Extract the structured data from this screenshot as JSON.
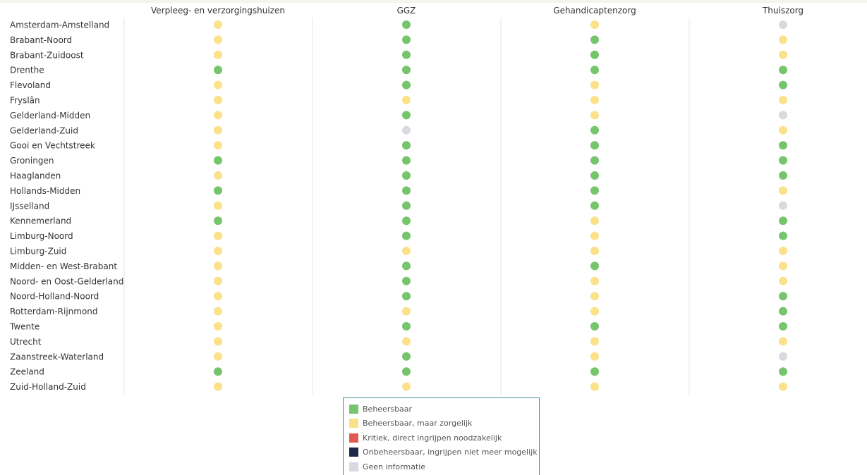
{
  "chart_data": {
    "type": "table",
    "columns": [
      "Verpleeg- en verzorgingshuizen",
      "GGZ",
      "Gehandicaptenzorg",
      "Thuiszorg"
    ],
    "status_colors": {
      "Beheersbaar": "#76c56d",
      "Beheersbaar, maar zorgelijk": "#fbe18a",
      "Kritiek, direct ingrijpen noodzakelijk": "#e05a52",
      "Onbeheersbaar, ingrijpen niet meer mogelijk": "#1d2848",
      "Geen informatie": "#d8dae0"
    },
    "rows": [
      {
        "region": "Amsterdam-Amstelland",
        "values": [
          "Beheersbaar, maar zorgelijk",
          "Beheersbaar",
          "Beheersbaar, maar zorgelijk",
          "Geen informatie"
        ]
      },
      {
        "region": "Brabant-Noord",
        "values": [
          "Beheersbaar, maar zorgelijk",
          "Beheersbaar",
          "Beheersbaar",
          "Beheersbaar, maar zorgelijk"
        ]
      },
      {
        "region": "Brabant-Zuidoost",
        "values": [
          "Beheersbaar, maar zorgelijk",
          "Beheersbaar",
          "Beheersbaar",
          "Beheersbaar, maar zorgelijk"
        ]
      },
      {
        "region": "Drenthe",
        "values": [
          "Beheersbaar",
          "Beheersbaar",
          "Beheersbaar",
          "Beheersbaar"
        ]
      },
      {
        "region": "Flevoland",
        "values": [
          "Beheersbaar, maar zorgelijk",
          "Beheersbaar",
          "Beheersbaar, maar zorgelijk",
          "Beheersbaar"
        ]
      },
      {
        "region": "Fryslân",
        "values": [
          "Beheersbaar, maar zorgelijk",
          "Beheersbaar, maar zorgelijk",
          "Beheersbaar, maar zorgelijk",
          "Beheersbaar, maar zorgelijk"
        ]
      },
      {
        "region": "Gelderland-Midden",
        "values": [
          "Beheersbaar, maar zorgelijk",
          "Beheersbaar",
          "Beheersbaar, maar zorgelijk",
          "Geen informatie"
        ]
      },
      {
        "region": "Gelderland-Zuid",
        "values": [
          "Beheersbaar, maar zorgelijk",
          "Geen informatie",
          "Beheersbaar",
          "Beheersbaar, maar zorgelijk"
        ]
      },
      {
        "region": "Gooi en Vechtstreek",
        "values": [
          "Beheersbaar, maar zorgelijk",
          "Beheersbaar",
          "Beheersbaar",
          "Beheersbaar"
        ]
      },
      {
        "region": "Groningen",
        "values": [
          "Beheersbaar",
          "Beheersbaar",
          "Beheersbaar",
          "Beheersbaar"
        ]
      },
      {
        "region": "Haaglanden",
        "values": [
          "Beheersbaar, maar zorgelijk",
          "Beheersbaar",
          "Beheersbaar",
          "Beheersbaar"
        ]
      },
      {
        "region": "Hollands-Midden",
        "values": [
          "Beheersbaar",
          "Beheersbaar",
          "Beheersbaar",
          "Beheersbaar, maar zorgelijk"
        ]
      },
      {
        "region": "IJsselland",
        "values": [
          "Beheersbaar, maar zorgelijk",
          "Beheersbaar",
          "Beheersbaar",
          "Geen informatie"
        ]
      },
      {
        "region": "Kennemerland",
        "values": [
          "Beheersbaar",
          "Beheersbaar",
          "Beheersbaar, maar zorgelijk",
          "Beheersbaar"
        ]
      },
      {
        "region": "Limburg-Noord",
        "values": [
          "Beheersbaar, maar zorgelijk",
          "Beheersbaar",
          "Beheersbaar, maar zorgelijk",
          "Beheersbaar"
        ]
      },
      {
        "region": "Limburg-Zuid",
        "values": [
          "Beheersbaar, maar zorgelijk",
          "Beheersbaar, maar zorgelijk",
          "Beheersbaar, maar zorgelijk",
          "Beheersbaar, maar zorgelijk"
        ]
      },
      {
        "region": "Midden- en West-Brabant",
        "values": [
          "Beheersbaar, maar zorgelijk",
          "Beheersbaar",
          "Beheersbaar",
          "Beheersbaar, maar zorgelijk"
        ]
      },
      {
        "region": "Noord- en Oost-Gelderland",
        "values": [
          "Beheersbaar, maar zorgelijk",
          "Beheersbaar",
          "Beheersbaar, maar zorgelijk",
          "Beheersbaar, maar zorgelijk"
        ]
      },
      {
        "region": "Noord-Holland-Noord",
        "values": [
          "Beheersbaar, maar zorgelijk",
          "Beheersbaar",
          "Beheersbaar, maar zorgelijk",
          "Beheersbaar"
        ]
      },
      {
        "region": "Rotterdam-Rijnmond",
        "values": [
          "Beheersbaar, maar zorgelijk",
          "Beheersbaar, maar zorgelijk",
          "Beheersbaar, maar zorgelijk",
          "Beheersbaar"
        ]
      },
      {
        "region": "Twente",
        "values": [
          "Beheersbaar, maar zorgelijk",
          "Beheersbaar",
          "Beheersbaar",
          "Beheersbaar"
        ]
      },
      {
        "region": "Utrecht",
        "values": [
          "Beheersbaar, maar zorgelijk",
          "Beheersbaar, maar zorgelijk",
          "Beheersbaar, maar zorgelijk",
          "Beheersbaar, maar zorgelijk"
        ]
      },
      {
        "region": "Zaanstreek-Waterland",
        "values": [
          "Beheersbaar, maar zorgelijk",
          "Beheersbaar",
          "Beheersbaar, maar zorgelijk",
          "Geen informatie"
        ]
      },
      {
        "region": "Zeeland",
        "values": [
          "Beheersbaar",
          "Beheersbaar",
          "Beheersbaar",
          "Beheersbaar"
        ]
      },
      {
        "region": "Zuid-Holland-Zuid",
        "values": [
          "Beheersbaar, maar zorgelijk",
          "Beheersbaar, maar zorgelijk",
          "Beheersbaar, maar zorgelijk",
          "Beheersbaar, maar zorgelijk"
        ]
      }
    ],
    "legend": [
      {
        "label": "Beheersbaar",
        "color": "#76c56d"
      },
      {
        "label": "Beheersbaar, maar zorgelijk",
        "color": "#fbe18a"
      },
      {
        "label": "Kritiek, direct ingrijpen noodzakelijk",
        "color": "#e05a52"
      },
      {
        "label": "Onbeheersbaar, ingrijpen niet meer mogelijk",
        "color": "#1d2848"
      },
      {
        "label": "Geen informatie",
        "color": "#d8dae0"
      }
    ],
    "legend_position": "bottom-center"
  }
}
